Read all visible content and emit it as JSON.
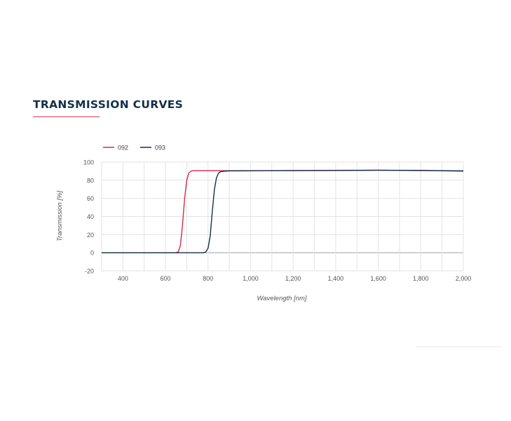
{
  "section": {
    "title": "TRANSMISSION CURVES"
  },
  "colors": {
    "title": "#12304a",
    "accent": "#e0334f",
    "grid": "#e3e3e3",
    "zero_line": "#9aa3a8"
  },
  "chart_data": {
    "type": "line",
    "title": "",
    "xlabel": "Wavelength [nm]",
    "ylabel": "Transmission [%]",
    "xlim": [
      300,
      2000
    ],
    "ylim": [
      -20,
      100
    ],
    "x_ticks": [
      400,
      600,
      800,
      1000,
      1200,
      1400,
      1600,
      1800,
      2000
    ],
    "x_tick_labels": [
      "400",
      "600",
      "800",
      "1,000",
      "1,200",
      "1,400",
      "1,600",
      "1,800",
      "2,000"
    ],
    "y_ticks": [
      -20,
      0,
      20,
      40,
      60,
      80,
      100
    ],
    "y_tick_labels": [
      "-20",
      "0",
      "20",
      "40",
      "60",
      "80",
      "100"
    ],
    "grid": true,
    "legend_position": "top-left",
    "series": [
      {
        "name": "092",
        "color": "#d9294a",
        "x": [
          300,
          600,
          650,
          660,
          670,
          680,
          690,
          700,
          710,
          720,
          730,
          750,
          800,
          1000,
          1200,
          1400,
          1600,
          1800,
          2000
        ],
        "y": [
          0,
          0,
          0,
          1,
          8,
          30,
          60,
          80,
          88,
          90,
          90.5,
          90.5,
          90.5,
          90.5,
          90.5,
          90.8,
          91,
          90.8,
          90
        ]
      },
      {
        "name": "093",
        "color": "#12304a",
        "x": [
          300,
          600,
          780,
          790,
          800,
          810,
          820,
          830,
          840,
          850,
          860,
          880,
          900,
          1000,
          1200,
          1400,
          1600,
          1800,
          2000
        ],
        "y": [
          0,
          0,
          0,
          1,
          5,
          18,
          45,
          70,
          83,
          88,
          89.5,
          90,
          90.3,
          90.4,
          90.6,
          90.8,
          91,
          90.7,
          90.3
        ]
      }
    ]
  }
}
